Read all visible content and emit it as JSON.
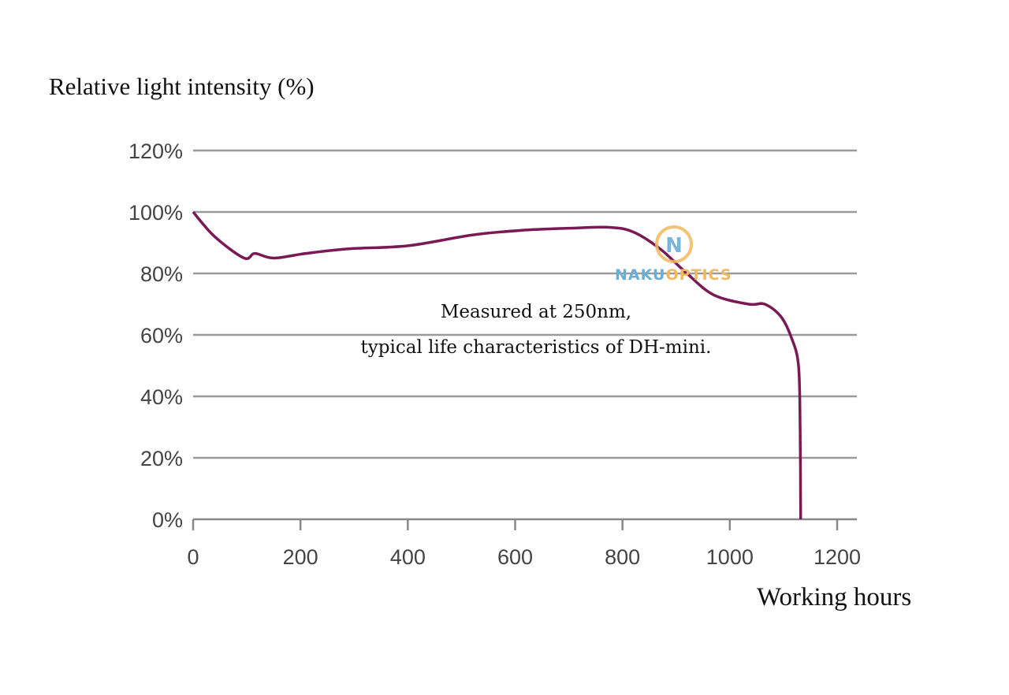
{
  "chart_data": {
    "type": "line",
    "title": "",
    "ylabel": "Relative light intensity (%)",
    "xlabel": "Working hours",
    "annotation": [
      "Measured at 250nm,",
      "typical life characteristics of DH-mini."
    ],
    "xlim": [
      0,
      1200
    ],
    "ylim": [
      0,
      120
    ],
    "x_ticks": [
      "0",
      "200",
      "400",
      "600",
      "800",
      "1000",
      "1200"
    ],
    "y_ticks": [
      "0%",
      "20%",
      "40%",
      "60%",
      "80%",
      "100%",
      "120%"
    ],
    "grid": "horizontal",
    "line_color": "#7a1a55",
    "series": [
      {
        "x": [
          0,
          40,
          95,
          115,
          150,
          210,
          290,
          400,
          520,
          610,
          700,
          775,
          820,
          870,
          920,
          970,
          1035,
          1065,
          1095,
          1115,
          1128,
          1131,
          1132
        ],
        "y": [
          100,
          92,
          85,
          86.5,
          85,
          86.5,
          88,
          89,
          92.5,
          94,
          94.7,
          95,
          93.5,
          88,
          80,
          73,
          70,
          70,
          66,
          59,
          50,
          30,
          0
        ]
      }
    ]
  },
  "watermark": {
    "text_a": "NAKU",
    "text_b": "OPTICS",
    "letter": "N",
    "color_a": "#6aaed6",
    "color_b": "#f0b860"
  }
}
